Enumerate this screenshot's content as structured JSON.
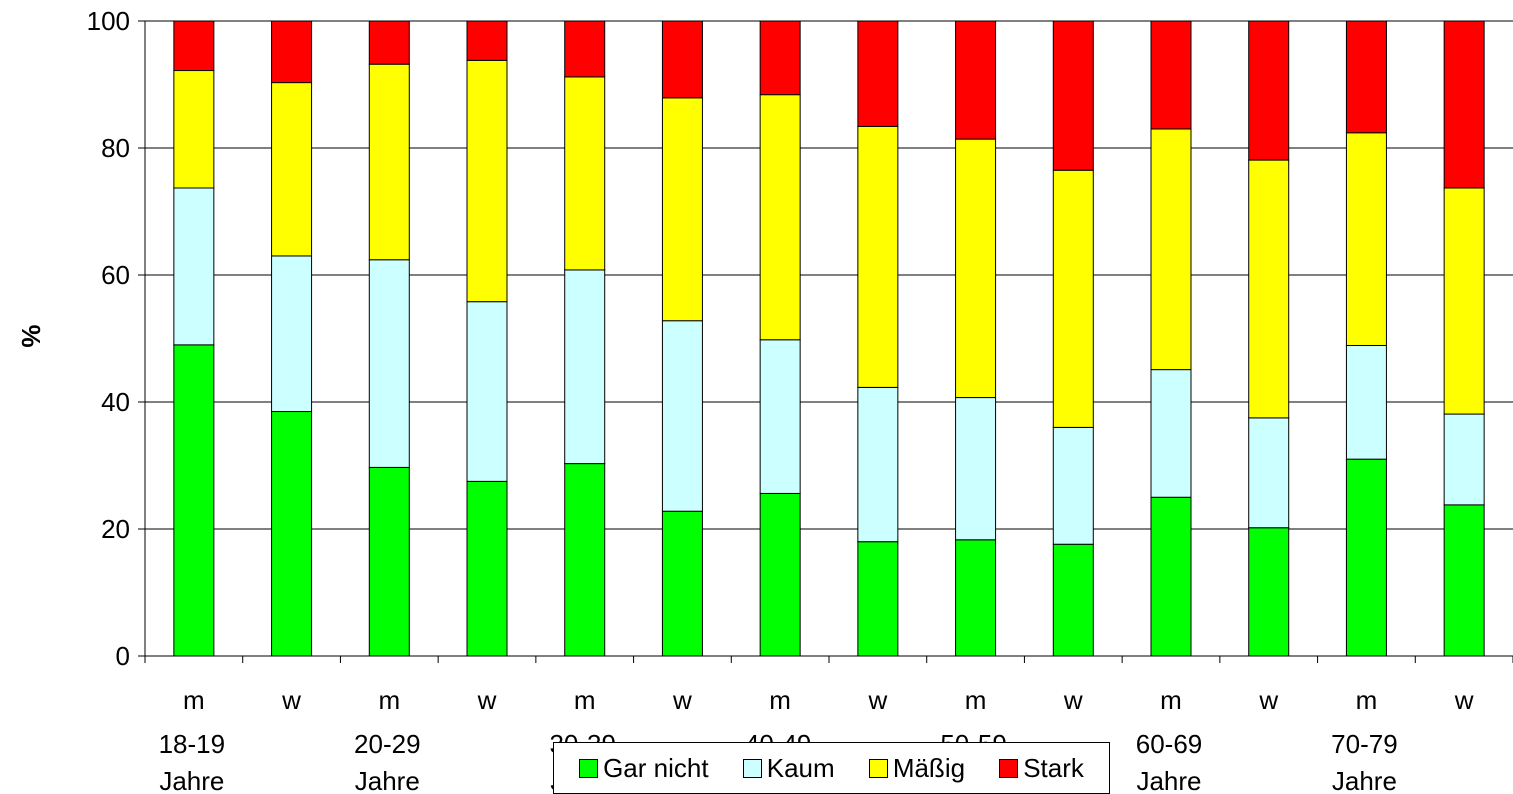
{
  "chart_data": {
    "type": "bar",
    "stacked": true,
    "ylabel": "%",
    "xlabel": "",
    "ylim": [
      0,
      100
    ],
    "yticks": [
      0,
      20,
      40,
      60,
      80,
      100
    ],
    "grid": true,
    "legend_position": "bottom",
    "categories": [
      {
        "sex": "m",
        "group": [
          "18-19",
          "Jahre"
        ]
      },
      {
        "sex": "w",
        "group": []
      },
      {
        "sex": "m",
        "group": [
          "20-29",
          "Jahre"
        ]
      },
      {
        "sex": "w",
        "group": []
      },
      {
        "sex": "m",
        "group": [
          "30-39",
          "Jahre"
        ]
      },
      {
        "sex": "w",
        "group": []
      },
      {
        "sex": "m",
        "group": [
          "40-49",
          "Jahre"
        ]
      },
      {
        "sex": "w",
        "group": []
      },
      {
        "sex": "m",
        "group": [
          "50-59",
          "Jahre"
        ]
      },
      {
        "sex": "w",
        "group": []
      },
      {
        "sex": "m",
        "group": [
          "60-69",
          "Jahre"
        ]
      },
      {
        "sex": "w",
        "group": []
      },
      {
        "sex": "m",
        "group": [
          "70-79",
          "Jahre"
        ]
      },
      {
        "sex": "w",
        "group": []
      }
    ],
    "series": [
      {
        "name": "Gar nicht",
        "color": "#00FF00",
        "values": [
          49,
          38.5,
          29.7,
          27.5,
          30.3,
          22.8,
          25.6,
          18,
          18.3,
          17.6,
          25,
          20.2,
          31,
          23.8
        ]
      },
      {
        "name": "Kaum",
        "color": "#CCFFFF",
        "values": [
          24.7,
          24.5,
          32.7,
          28.3,
          30.5,
          30,
          24.2,
          24.3,
          22.4,
          18.4,
          20.1,
          17.3,
          17.9,
          14.3
        ]
      },
      {
        "name": "Mäßig",
        "color": "#FFFF00",
        "values": [
          18.5,
          27.3,
          30.8,
          38,
          30.4,
          35.1,
          38.6,
          41.1,
          40.7,
          40.5,
          37.9,
          40.6,
          33.5,
          35.6
        ]
      },
      {
        "name": "Stark",
        "color": "#FF0000",
        "values": [
          7.8,
          9.7,
          6.8,
          6.2,
          8.8,
          12.1,
          11.6,
          16.6,
          18.6,
          23.5,
          17,
          21.9,
          17.6,
          26.3
        ]
      }
    ]
  }
}
